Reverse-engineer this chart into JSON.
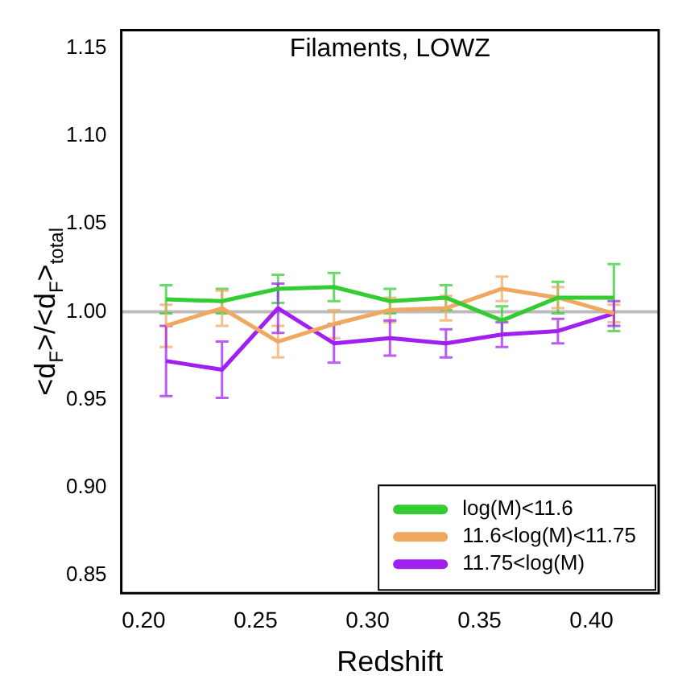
{
  "chart_data": {
    "type": "line",
    "title": "Filaments, LOWZ",
    "xlabel": "Redshift",
    "ylabel": "<d$_{F}$>/<d$_{F}$>$_{total}$",
    "x": [
      0.21,
      0.235,
      0.26,
      0.285,
      0.31,
      0.335,
      0.36,
      0.385,
      0.41
    ],
    "xlim": [
      0.19,
      0.43
    ],
    "xticks": [
      {
        "value": 0.2,
        "label": "0.20"
      },
      0.25,
      {
        "value": 0.3,
        "label": "0.30"
      },
      0.35,
      {
        "value": 0.4,
        "label": "0.40"
      }
    ],
    "ylim": [
      0.84,
      1.16
    ],
    "yticks": [
      {
        "value": 0.85,
        "label": "0.85"
      },
      {
        "value": 0.9,
        "label": "0.90"
      },
      {
        "value": 0.95,
        "label": "0.95"
      },
      {
        "value": 1.0,
        "label": "1.00"
      },
      {
        "value": 1.05,
        "label": "1.05"
      },
      {
        "value": 1.1,
        "label": "1.10"
      },
      {
        "value": 1.15,
        "label": "1.15"
      }
    ],
    "series": [
      {
        "name": "log(M)<11.6",
        "color": "#33cc33",
        "values": [
          1.007,
          1.006,
          1.013,
          1.014,
          1.006,
          1.008,
          0.995,
          1.008,
          1.008
        ],
        "errors": [
          0.008,
          0.007,
          0.008,
          0.008,
          0.007,
          0.007,
          0.008,
          0.009,
          0.019
        ]
      },
      {
        "name": "11.6<log(M)<11.75",
        "color": "#f0a860",
        "values": [
          0.992,
          1.002,
          0.983,
          0.993,
          1.001,
          1.002,
          1.013,
          1.008,
          0.999
        ],
        "errors": [
          0.012,
          0.01,
          0.009,
          0.008,
          0.007,
          0.007,
          0.007,
          0.006,
          0.005
        ]
      },
      {
        "name": "11.75<log(M)",
        "color": "#a020f0",
        "values": [
          0.972,
          0.967,
          1.002,
          0.982,
          0.985,
          0.982,
          0.987,
          0.989,
          0.999
        ],
        "errors": [
          0.02,
          0.016,
          0.014,
          0.011,
          0.01,
          0.008,
          0.007,
          0.007,
          0.007
        ]
      }
    ],
    "ref_lines": [
      {
        "axis": "y",
        "value": 1.0,
        "color": "#bbbbbb"
      }
    ],
    "legend": "bottom right",
    "grid": false,
    "marker": "none",
    "line_style": "solid"
  }
}
